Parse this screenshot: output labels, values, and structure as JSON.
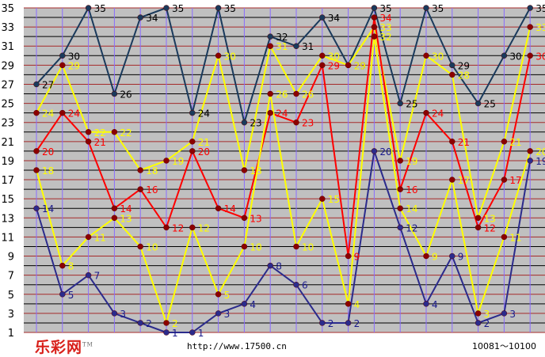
{
  "logo": {
    "text": "乐彩网",
    "mark": "TM"
  },
  "footer": {
    "url": "http://www.17500.cn",
    "range": "10081～10100"
  },
  "colors": {
    "background": "#c0c0c0",
    "hgrid_odd": "#a52a2a",
    "hgrid_even": "#000000",
    "vgrid": "#8a6cff"
  },
  "chart_data": {
    "type": "line",
    "title": "",
    "xlabel": "",
    "ylabel": "",
    "ylim": [
      1,
      35
    ],
    "yticks": [
      "1",
      "3",
      "5",
      "7",
      "9",
      "11",
      "13",
      "15",
      "17",
      "19",
      "21",
      "23",
      "25",
      "27",
      "29",
      "31",
      "33",
      "35"
    ],
    "x": [
      1,
      2,
      3,
      4,
      5,
      6,
      7,
      8,
      9,
      10,
      11,
      12,
      13,
      14,
      15,
      16,
      17,
      18,
      19,
      20
    ],
    "grid": true,
    "series": [
      {
        "color": "#1a3a5c",
        "labelColor": "#000000",
        "values": [
          27,
          30,
          35,
          26,
          34,
          35,
          24,
          35,
          23,
          32,
          31,
          34,
          29,
          35,
          25,
          35,
          29,
          25,
          30,
          35
        ]
      },
      {
        "color": "#ffff00",
        "labelColor": "#ffff00",
        "values": [
          24,
          29,
          22,
          22,
          18,
          19,
          21,
          30,
          18,
          31,
          26,
          30,
          29,
          33,
          19,
          30,
          28,
          13,
          21,
          33
        ]
      },
      {
        "color": "#ff0000",
        "labelColor": "#ff0000",
        "values": [
          20,
          24,
          21,
          14,
          16,
          12,
          20,
          14,
          13,
          24,
          23,
          29,
          9,
          34,
          16,
          24,
          21,
          12,
          17,
          30
        ]
      },
      {
        "color": "#ffff00",
        "labelColor": "#ffff00",
        "values": [
          18,
          8,
          11,
          13,
          10,
          2,
          12,
          5,
          10,
          26,
          10,
          15,
          4,
          32,
          14,
          9,
          17,
          3,
          11,
          20
        ]
      },
      {
        "color": "#2b2b8c",
        "labelColor": "#1a1a8c",
        "values": [
          14,
          5,
          7,
          3,
          2,
          1,
          1,
          3,
          4,
          8,
          6,
          2,
          2,
          20,
          12,
          4,
          9,
          2,
          3,
          19
        ]
      }
    ]
  }
}
